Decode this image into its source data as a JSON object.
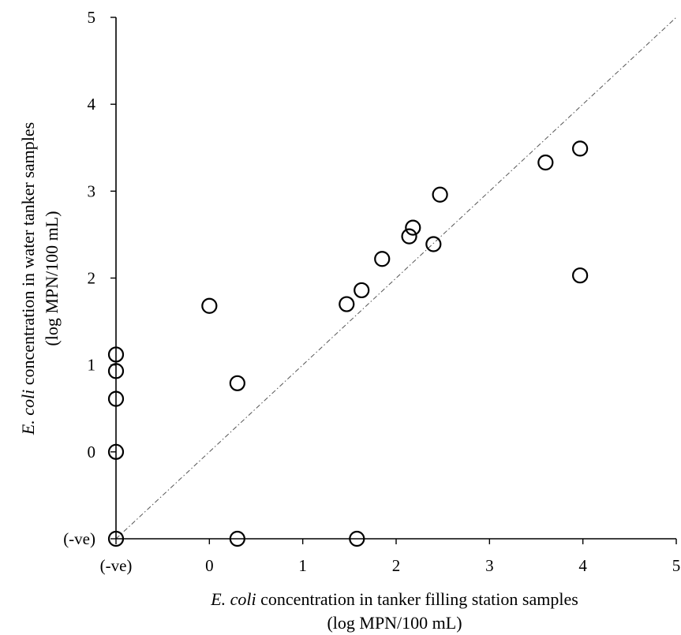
{
  "chart_data": {
    "type": "scatter",
    "xlabel_italic": "E. coli",
    "xlabel_rest": " concentration in tanker filling station samples",
    "xlabel_units": "(log MPN/100 mL)",
    "ylabel_italic": "E. coli",
    "ylabel_rest": " concentration in water tanker samples",
    "ylabel_units": "(log MPN/100 mL)",
    "xlim": [
      -1,
      5
    ],
    "ylim": [
      -1,
      5
    ],
    "x_ticks": [
      {
        "value": -1,
        "label": "(-ve)"
      },
      {
        "value": 0,
        "label": "0"
      },
      {
        "value": 1,
        "label": "1"
      },
      {
        "value": 2,
        "label": "2"
      },
      {
        "value": 3,
        "label": "3"
      },
      {
        "value": 4,
        "label": "4"
      },
      {
        "value": 5,
        "label": "5"
      }
    ],
    "y_ticks": [
      {
        "value": -1,
        "label": "(-ve)"
      },
      {
        "value": 0,
        "label": "0"
      },
      {
        "value": 1,
        "label": "1"
      },
      {
        "value": 2,
        "label": "2"
      },
      {
        "value": 3,
        "label": "3"
      },
      {
        "value": 4,
        "label": "4"
      },
      {
        "value": 5,
        "label": "5"
      }
    ],
    "reference_line": {
      "style": "dash-dot",
      "from": [
        -1,
        -1
      ],
      "to": [
        5,
        5
      ]
    },
    "grid": false,
    "marker": "open-circle",
    "points": [
      {
        "x": -1,
        "y": 1.12
      },
      {
        "x": -1,
        "y": 0.93
      },
      {
        "x": -1,
        "y": 0.61
      },
      {
        "x": -1,
        "y": 0.0
      },
      {
        "x": -1,
        "y": -1
      },
      {
        "x": 0.0,
        "y": 1.68
      },
      {
        "x": 0.3,
        "y": 0.79
      },
      {
        "x": 0.3,
        "y": -1
      },
      {
        "x": 1.58,
        "y": -1
      },
      {
        "x": 1.47,
        "y": 1.7
      },
      {
        "x": 1.63,
        "y": 1.86
      },
      {
        "x": 1.85,
        "y": 2.22
      },
      {
        "x": 2.14,
        "y": 2.48
      },
      {
        "x": 2.18,
        "y": 2.58
      },
      {
        "x": 2.4,
        "y": 2.39
      },
      {
        "x": 2.47,
        "y": 2.96
      },
      {
        "x": 3.6,
        "y": 3.33
      },
      {
        "x": 3.97,
        "y": 3.49
      },
      {
        "x": 3.97,
        "y": 2.03
      }
    ]
  }
}
